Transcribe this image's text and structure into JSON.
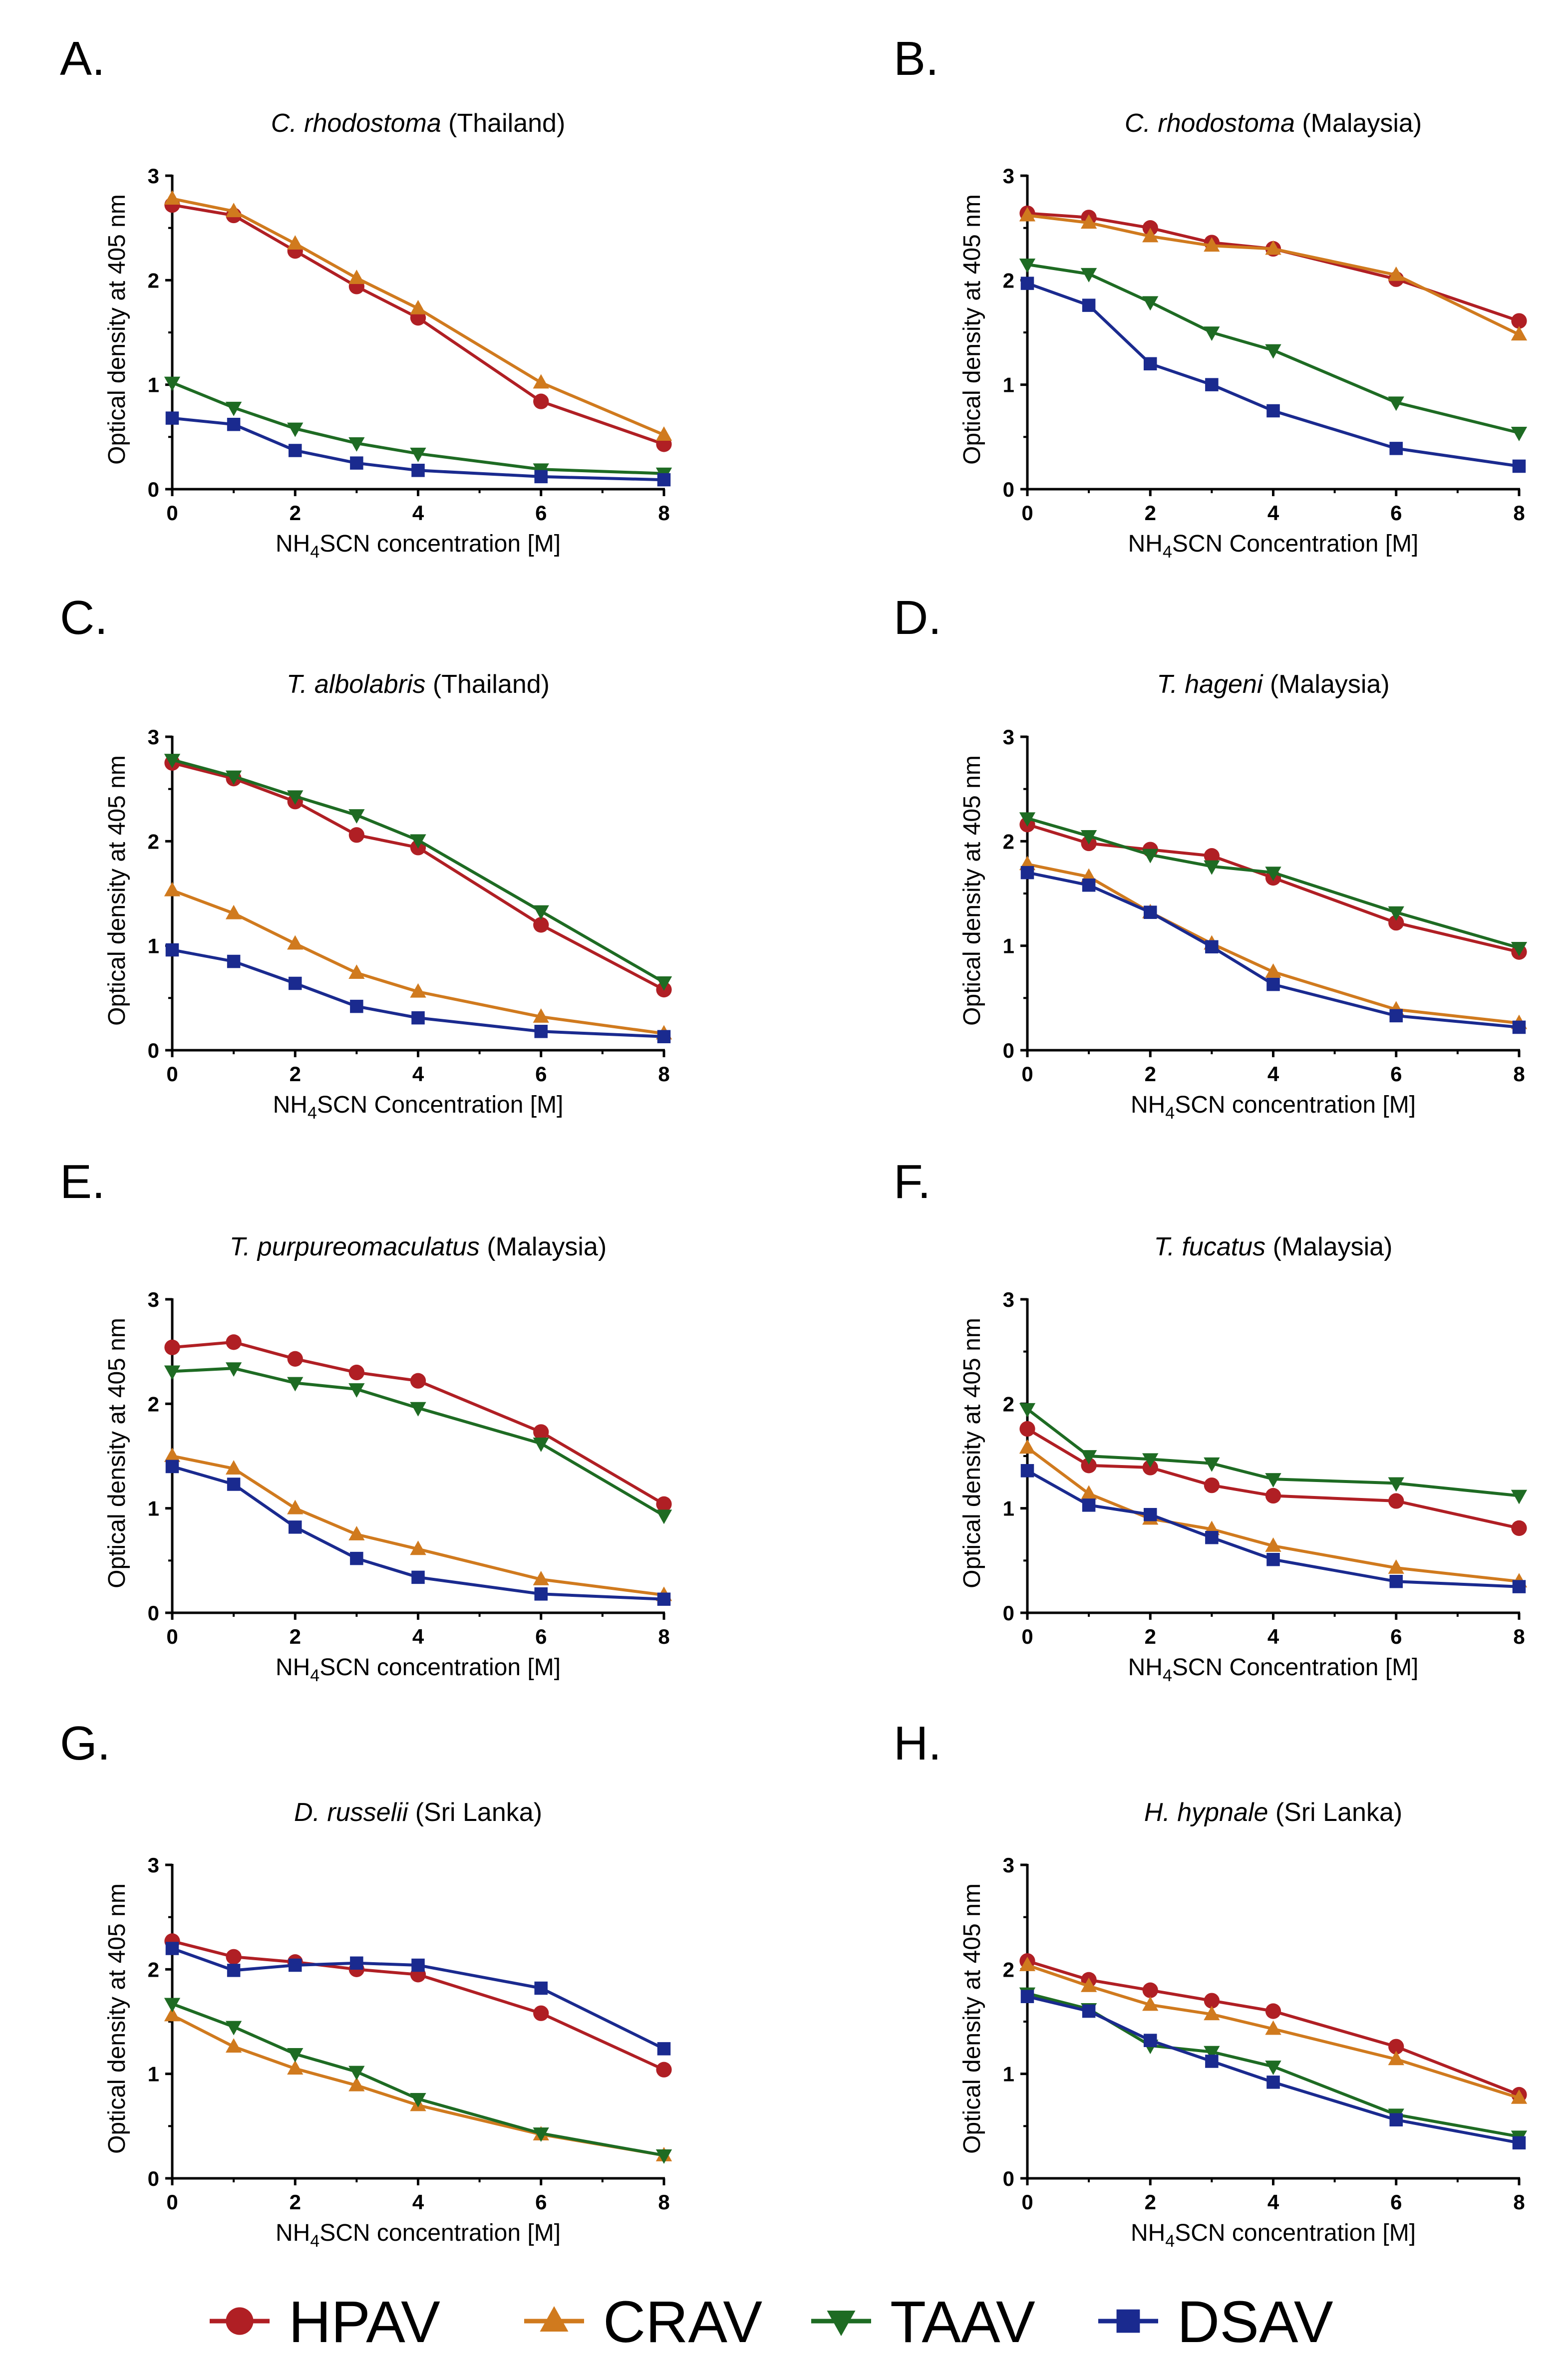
{
  "colors": {
    "HPAV": "#b01f24",
    "CRAV": "#d07a1e",
    "TAAV": "#1e6b23",
    "DSAV": "#1a2a8f"
  },
  "legend": [
    {
      "name": "HPAV",
      "marker": "circle"
    },
    {
      "name": "CRAV",
      "marker": "triangle-up"
    },
    {
      "name": "TAAV",
      "marker": "triangle-down"
    },
    {
      "name": "DSAV",
      "marker": "square"
    }
  ],
  "chart_data": [
    {
      "panel": "A.",
      "type": "line",
      "title_italic": "C. rhodostoma",
      "title_rest": " (Thailand)",
      "ylabel": "Optical density at 405 nm",
      "xlabel_pre": "NH",
      "xlabel_sub": "4",
      "xlabel_post": "SCN concentration [M]",
      "x": [
        0,
        1,
        2,
        3,
        4,
        6,
        8
      ],
      "xticks": [
        "0",
        "2",
        "4",
        "6",
        "8"
      ],
      "yticks": [
        "0",
        "1",
        "2",
        "3"
      ],
      "xlim": [
        0,
        8
      ],
      "ylim": [
        0,
        3
      ],
      "series": [
        {
          "name": "HPAV",
          "values": [
            2.72,
            2.62,
            2.28,
            1.94,
            1.64,
            0.84,
            0.43
          ]
        },
        {
          "name": "CRAV",
          "values": [
            2.78,
            2.66,
            2.35,
            2.02,
            1.73,
            1.02,
            0.52
          ]
        },
        {
          "name": "TAAV",
          "values": [
            1.02,
            0.78,
            0.58,
            0.44,
            0.34,
            0.19,
            0.15
          ]
        },
        {
          "name": "DSAV",
          "values": [
            0.68,
            0.62,
            0.37,
            0.25,
            0.18,
            0.12,
            0.09
          ]
        }
      ]
    },
    {
      "panel": "B.",
      "type": "line",
      "title_italic": "C. rhodostoma",
      "title_rest": " (Malaysia)",
      "ylabel": "Optical density at 405 nm",
      "xlabel_pre": "NH",
      "xlabel_sub": "4",
      "xlabel_post": "SCN Concentration [M]",
      "x": [
        0,
        1,
        2,
        3,
        4,
        6,
        8
      ],
      "xticks": [
        "0",
        "2",
        "4",
        "6",
        "8"
      ],
      "yticks": [
        "0",
        "1",
        "2",
        "3"
      ],
      "xlim": [
        0,
        8
      ],
      "ylim": [
        0,
        3
      ],
      "series": [
        {
          "name": "HPAV",
          "values": [
            2.64,
            2.6,
            2.5,
            2.36,
            2.3,
            2.01,
            1.61
          ]
        },
        {
          "name": "CRAV",
          "values": [
            2.62,
            2.55,
            2.42,
            2.33,
            2.3,
            2.05,
            1.48
          ]
        },
        {
          "name": "TAAV",
          "values": [
            2.15,
            2.06,
            1.79,
            1.5,
            1.33,
            0.83,
            0.54
          ]
        },
        {
          "name": "DSAV",
          "values": [
            1.97,
            1.76,
            1.2,
            1.0,
            0.75,
            0.39,
            0.22
          ]
        }
      ]
    },
    {
      "panel": "C.",
      "type": "line",
      "title_italic": "T. albolabris",
      "title_rest": " (Thailand)",
      "ylabel": "Optical density at 405 nm",
      "xlabel_pre": "NH",
      "xlabel_sub": "4",
      "xlabel_post": "SCN Concentration [M]",
      "x": [
        0,
        1,
        2,
        3,
        4,
        6,
        8
      ],
      "xticks": [
        "0",
        "2",
        "4",
        "6",
        "8"
      ],
      "yticks": [
        "0",
        "1",
        "2",
        "3"
      ],
      "xlim": [
        0,
        8
      ],
      "ylim": [
        0,
        3
      ],
      "series": [
        {
          "name": "HPAV",
          "values": [
            2.75,
            2.6,
            2.38,
            2.06,
            1.94,
            1.2,
            0.58
          ]
        },
        {
          "name": "CRAV",
          "values": [
            1.53,
            1.31,
            1.02,
            0.74,
            0.56,
            0.32,
            0.16
          ]
        },
        {
          "name": "TAAV",
          "values": [
            2.78,
            2.62,
            2.43,
            2.25,
            2.01,
            1.33,
            0.65
          ]
        },
        {
          "name": "DSAV",
          "values": [
            0.96,
            0.85,
            0.64,
            0.42,
            0.31,
            0.18,
            0.13
          ]
        }
      ]
    },
    {
      "panel": "D.",
      "type": "line",
      "title_italic": "T. hageni",
      "title_rest": " (Malaysia)",
      "ylabel": "Optical density at 405 nm",
      "xlabel_pre": "NH",
      "xlabel_sub": "4",
      "xlabel_post": "SCN concentration [M]",
      "x": [
        0,
        1,
        2,
        3,
        4,
        6,
        8
      ],
      "xticks": [
        "0",
        "2",
        "4",
        "6",
        "8"
      ],
      "yticks": [
        "0",
        "1",
        "2",
        "3"
      ],
      "xlim": [
        0,
        8
      ],
      "ylim": [
        0,
        3
      ],
      "series": [
        {
          "name": "HPAV",
          "values": [
            2.16,
            1.98,
            1.92,
            1.86,
            1.65,
            1.22,
            0.94
          ]
        },
        {
          "name": "CRAV",
          "values": [
            1.78,
            1.66,
            1.32,
            1.02,
            0.75,
            0.39,
            0.26
          ]
        },
        {
          "name": "TAAV",
          "values": [
            2.22,
            2.05,
            1.87,
            1.76,
            1.7,
            1.32,
            0.98
          ]
        },
        {
          "name": "DSAV",
          "values": [
            1.7,
            1.58,
            1.32,
            0.99,
            0.63,
            0.33,
            0.22
          ]
        }
      ]
    },
    {
      "panel": "E.",
      "type": "line",
      "title_italic": "T. purpureomaculatus",
      "title_rest": " (Malaysia)",
      "ylabel": "Optical density at 405 nm",
      "xlabel_pre": "NH",
      "xlabel_sub": "4",
      "xlabel_post": "SCN concentration [M]",
      "x": [
        0,
        1,
        2,
        3,
        4,
        6,
        8
      ],
      "xticks": [
        "0",
        "2",
        "4",
        "6",
        "8"
      ],
      "yticks": [
        "0",
        "1",
        "2",
        "3"
      ],
      "xlim": [
        0,
        8
      ],
      "ylim": [
        0,
        3
      ],
      "series": [
        {
          "name": "HPAV",
          "values": [
            2.54,
            2.59,
            2.43,
            2.3,
            2.22,
            1.73,
            1.04
          ]
        },
        {
          "name": "CRAV",
          "values": [
            1.5,
            1.38,
            1.0,
            0.75,
            0.61,
            0.32,
            0.17
          ]
        },
        {
          "name": "TAAV",
          "values": [
            2.31,
            2.34,
            2.2,
            2.14,
            1.96,
            1.62,
            0.93
          ]
        },
        {
          "name": "DSAV",
          "values": [
            1.4,
            1.23,
            0.82,
            0.52,
            0.34,
            0.18,
            0.13
          ]
        }
      ]
    },
    {
      "panel": "F.",
      "type": "line",
      "title_italic": "T. fucatus",
      "title_rest": " (Malaysia)",
      "ylabel": "Optical density at 405 nm",
      "xlabel_pre": "NH",
      "xlabel_sub": "4",
      "xlabel_post": "SCN Concentration [M]",
      "x": [
        0,
        1,
        2,
        3,
        4,
        6,
        8
      ],
      "xticks": [
        "0",
        "2",
        "4",
        "6",
        "8"
      ],
      "yticks": [
        "0",
        "1",
        "2",
        "3"
      ],
      "xlim": [
        0,
        8
      ],
      "ylim": [
        0,
        3
      ],
      "series": [
        {
          "name": "HPAV",
          "values": [
            1.76,
            1.41,
            1.39,
            1.22,
            1.12,
            1.07,
            0.81
          ]
        },
        {
          "name": "CRAV",
          "values": [
            1.58,
            1.14,
            0.9,
            0.8,
            0.64,
            0.43,
            0.3
          ]
        },
        {
          "name": "TAAV",
          "values": [
            1.95,
            1.5,
            1.47,
            1.43,
            1.28,
            1.24,
            1.12
          ]
        },
        {
          "name": "DSAV",
          "values": [
            1.36,
            1.03,
            0.94,
            0.72,
            0.51,
            0.3,
            0.25
          ]
        }
      ]
    },
    {
      "panel": "G.",
      "type": "line",
      "title_italic": "D. russelii",
      "title_rest": " (Sri Lanka)",
      "ylabel": "Optical density at 405 nm",
      "xlabel_pre": "NH",
      "xlabel_sub": "4",
      "xlabel_post": "SCN concentration [M]",
      "x": [
        0,
        1,
        2,
        3,
        4,
        6,
        8
      ],
      "xticks": [
        "0",
        "2",
        "4",
        "6",
        "8"
      ],
      "yticks": [
        "0",
        "1",
        "2",
        "3"
      ],
      "xlim": [
        0,
        8
      ],
      "ylim": [
        0,
        3
      ],
      "series": [
        {
          "name": "HPAV",
          "values": [
            2.27,
            2.12,
            2.07,
            2.0,
            1.95,
            1.58,
            1.04
          ]
        },
        {
          "name": "CRAV",
          "values": [
            1.56,
            1.26,
            1.05,
            0.89,
            0.7,
            0.42,
            0.22
          ]
        },
        {
          "name": "TAAV",
          "values": [
            1.67,
            1.45,
            1.19,
            1.02,
            0.76,
            0.43,
            0.22
          ]
        },
        {
          "name": "DSAV",
          "values": [
            2.2,
            1.99,
            2.04,
            2.06,
            2.04,
            1.82,
            1.24
          ]
        }
      ]
    },
    {
      "panel": "H.",
      "type": "line",
      "title_italic": "H. hypnale",
      "title_rest": " (Sri Lanka)",
      "ylabel": "Optical density at 405 nm",
      "xlabel_pre": "NH",
      "xlabel_sub": "4",
      "xlabel_post": "SCN concentration [M]",
      "x": [
        0,
        1,
        2,
        3,
        4,
        6,
        8
      ],
      "xticks": [
        "0",
        "2",
        "4",
        "6",
        "8"
      ],
      "yticks": [
        "0",
        "1",
        "2",
        "3"
      ],
      "xlim": [
        0,
        8
      ],
      "ylim": [
        0,
        3
      ],
      "series": [
        {
          "name": "HPAV",
          "values": [
            2.08,
            1.9,
            1.8,
            1.7,
            1.6,
            1.26,
            0.8
          ]
        },
        {
          "name": "CRAV",
          "values": [
            2.04,
            1.84,
            1.66,
            1.57,
            1.43,
            1.14,
            0.77
          ]
        },
        {
          "name": "TAAV",
          "values": [
            1.77,
            1.62,
            1.27,
            1.21,
            1.07,
            0.61,
            0.4
          ]
        },
        {
          "name": "DSAV",
          "values": [
            1.74,
            1.6,
            1.32,
            1.12,
            0.92,
            0.56,
            0.34
          ]
        }
      ]
    }
  ]
}
